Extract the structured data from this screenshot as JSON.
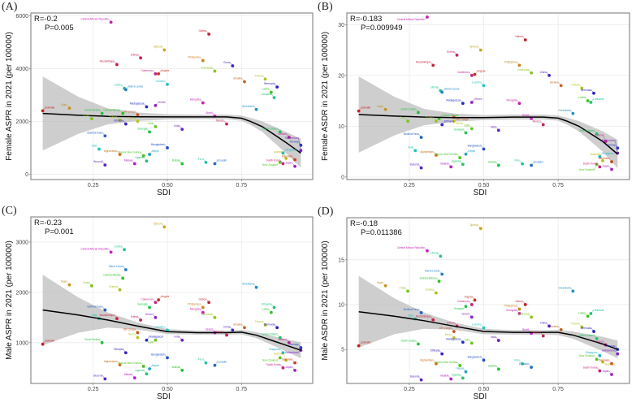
{
  "chart_data": [
    {
      "id": "A",
      "panel_label": "(A)",
      "type": "scatter",
      "metric": "f_aspr",
      "xlabel": "SDI",
      "ylabel": "Female ASPR in 2021 (per 100000)",
      "stat_r": "R=-0.2",
      "stat_p": "P=0.005",
      "xlim": [
        0.04,
        0.99
      ],
      "ylim": [
        -200,
        6100
      ],
      "xticks": [
        0.25,
        0.5,
        0.75
      ],
      "xtick_labels": [
        "0.25",
        "0.50",
        "0.75"
      ],
      "yticks": [
        0,
        2000,
        4000,
        6000
      ],
      "ytick_labels": [
        "0",
        "2000",
        "4000",
        "6000"
      ],
      "trend": {
        "x": [
          0.08,
          0.2,
          0.3,
          0.4,
          0.5,
          0.6,
          0.7,
          0.75,
          0.78,
          0.82,
          0.86,
          0.9,
          0.95
        ],
        "y": [
          2300,
          2230,
          2190,
          2175,
          2170,
          2170,
          2170,
          2120,
          2000,
          1800,
          1500,
          1200,
          800
        ],
        "ci": [
          1400,
          700,
          300,
          160,
          100,
          90,
          90,
          100,
          130,
          200,
          300,
          400,
          550
        ]
      }
    },
    {
      "id": "B",
      "panel_label": "(B)",
      "type": "scatter",
      "metric": "f_asdr",
      "xlabel": "SDI",
      "ylabel": "Female ASDR in 2021 (per 100000)",
      "stat_r": "R=-0.183",
      "stat_p": "P=0.009949",
      "xlim": [
        0.04,
        0.99
      ],
      "ylim": [
        -0.5,
        32.3
      ],
      "xticks": [
        0.25,
        0.5,
        0.75
      ],
      "xtick_labels": [
        "0.25",
        "0.50",
        "0.75"
      ],
      "yticks": [
        0,
        10,
        20,
        30
      ],
      "ytick_labels": [
        "0",
        "10",
        "20",
        "30"
      ],
      "trend": {
        "x": [
          0.08,
          0.2,
          0.3,
          0.4,
          0.5,
          0.6,
          0.7,
          0.75,
          0.78,
          0.82,
          0.86,
          0.9,
          0.95
        ],
        "y": [
          12.3,
          12.0,
          11.8,
          11.7,
          11.7,
          11.8,
          11.8,
          11.6,
          11.0,
          10.0,
          8.5,
          7.0,
          4.5
        ],
        "ci": [
          7.5,
          3.8,
          1.6,
          0.8,
          0.5,
          0.5,
          0.5,
          0.5,
          0.7,
          1.0,
          1.5,
          2.0,
          2.8
        ]
      }
    },
    {
      "id": "C",
      "panel_label": "(C)",
      "type": "scatter",
      "metric": "m_aspr",
      "xlabel": "SDI",
      "ylabel": "Male ASPR in 2021 (per 100000)",
      "stat_r": "R=-0.23",
      "stat_p": "P=0.001",
      "xlim": [
        0.04,
        0.99
      ],
      "ylim": [
        190,
        3500
      ],
      "xticks": [
        0.25,
        0.5,
        0.75
      ],
      "xtick_labels": [
        "0.25",
        "0.50",
        "0.75"
      ],
      "yticks": [
        1000,
        2000,
        3000
      ],
      "ytick_labels": [
        "1000",
        "2000",
        "3000"
      ],
      "trend": {
        "x": [
          0.08,
          0.2,
          0.3,
          0.4,
          0.5,
          0.6,
          0.7,
          0.75,
          0.8,
          0.85,
          0.9,
          0.95
        ],
        "y": [
          1650,
          1550,
          1450,
          1330,
          1220,
          1200,
          1200,
          1210,
          1150,
          1050,
          950,
          850
        ],
        "ci": [
          700,
          350,
          150,
          70,
          50,
          40,
          40,
          45,
          60,
          90,
          120,
          160
        ]
      }
    },
    {
      "id": "D",
      "panel_label": "(D)",
      "type": "scatter",
      "metric": "m_asdr",
      "xlabel": "SDI",
      "ylabel": "Male ASDR in 2021 (per 100000)",
      "stat_r": "R=-0.18",
      "stat_p": "P=0.011386",
      "xlim": [
        0.04,
        0.99
      ],
      "ylim": [
        1.2,
        19.7
      ],
      "xticks": [
        0.25,
        0.5,
        0.75
      ],
      "xtick_labels": [
        "0.25",
        "0.50",
        "0.75"
      ],
      "yticks": [
        5,
        10,
        15
      ],
      "ytick_labels": [
        "5",
        "10",
        "15"
      ],
      "trend": {
        "x": [
          0.08,
          0.2,
          0.3,
          0.4,
          0.5,
          0.6,
          0.7,
          0.75,
          0.8,
          0.85,
          0.9,
          0.95
        ],
        "y": [
          9.2,
          8.7,
          8.2,
          7.6,
          7.0,
          6.9,
          6.9,
          6.9,
          6.6,
          6.1,
          5.6,
          5.0
        ],
        "ci": [
          4.0,
          2.0,
          0.9,
          0.4,
          0.3,
          0.25,
          0.25,
          0.3,
          0.4,
          0.6,
          0.8,
          1.0
        ]
      }
    }
  ],
  "points_fields": [
    "country",
    "sdi",
    "f_aspr",
    "f_asdr",
    "m_aspr",
    "m_asdr"
  ],
  "points": [
    [
      "Somalia",
      0.08,
      2400,
      13,
      970,
      5.4
    ],
    [
      "Niger",
      0.17,
      2500,
      13.3,
      2150,
      12.1
    ],
    [
      "Chad",
      0.245,
      2100,
      11,
      2130,
      11.5
    ],
    [
      "South Sudan",
      0.28,
      2300,
      12.7,
      1000,
      5.6
    ],
    [
      "Mali",
      0.27,
      950,
      5.2,
      1480,
      8.4
    ],
    [
      "Burkina Faso",
      0.29,
      1450,
      7.8,
      1650,
      9.1
    ],
    [
      "Burundi",
      0.29,
      350,
      1.8,
      280,
      1.6
    ],
    [
      "Central African Republic",
      0.31,
      5750,
      31.5,
      2800,
      16
    ],
    [
      "Mozambique",
      0.33,
      4150,
      22,
      1480,
      8.3
    ],
    [
      "Afghanistan",
      0.34,
      750,
      4.3,
      560,
      3.4
    ],
    [
      "Guinea",
      0.34,
      2050,
      11,
      2050,
      11.3
    ],
    [
      "Guinea-Bissau",
      0.35,
      2300,
      11.5,
      2280,
      12.6
    ],
    [
      "Liberia",
      0.355,
      3250,
      17,
      2850,
      15.4
    ],
    [
      "Sierra Leone",
      0.36,
      3200,
      16.7,
      2450,
      13.4
    ],
    [
      "Ethiopia",
      0.36,
      1900,
      10.3,
      800,
      4.5
    ],
    [
      "Malawi",
      0.39,
      400,
      2,
      300,
      1.7
    ],
    [
      "Eritrea",
      0.41,
      4400,
      24,
      1450,
      7.6
    ],
    [
      "DR Congo",
      0.4,
      2250,
      11.8,
      1200,
      7
    ],
    [
      "Benin",
      0.4,
      2000,
      11,
      1100,
      6.3
    ],
    [
      "Papua New Guinea",
      0.42,
      700,
      3.8,
      530,
      3.2
    ],
    [
      "Uganda",
      0.43,
      500,
      2.5,
      380,
      1.8
    ],
    [
      "Nepal",
      0.44,
      750,
      4.5,
      480,
      2.5
    ],
    [
      "Madagascar",
      0.43,
      2550,
      14.5,
      1050,
      5.8
    ],
    [
      "Yemen",
      0.46,
      2600,
      14.7,
      1500,
      8.6
    ],
    [
      "Cameroon",
      0.46,
      3800,
      20,
      1800,
      10
    ],
    [
      "Angola",
      0.47,
      3800,
      20.2,
      1850,
      10.5
    ],
    [
      "Djibouti",
      0.49,
      4700,
      25,
      3300,
      18.5
    ],
    [
      "Haiti",
      0.46,
      1800,
      9.5,
      1050,
      5.7
    ],
    [
      "Senegal",
      0.44,
      1600,
      8.7,
      1700,
      9.8
    ],
    [
      "Lesotho",
      0.5,
      3400,
      18,
      1250,
      7.4
    ],
    [
      "Bangladesh",
      0.5,
      1000,
      5.5,
      700,
      3.8
    ],
    [
      "India",
      0.55,
      1700,
      9.2,
      1050,
      6
    ],
    [
      "Mongolia",
      0.62,
      2700,
      14.5,
      1600,
      9
    ],
    [
      "Gabon",
      0.64,
      5300,
      27,
      1800,
      10
    ],
    [
      "Philippines",
      0.62,
      4300,
      22,
      1700,
      9.5
    ],
    [
      "Indonesia",
      0.66,
      3900,
      20.5,
      1500,
      8.6
    ],
    [
      "Bolivia",
      0.55,
      400,
      2.3,
      450,
      2.8
    ],
    [
      "Peru",
      0.63,
      450,
      2.6,
      600,
      3.4
    ],
    [
      "Ecuador",
      0.66,
      400,
      2.3,
      550,
      3
    ],
    [
      "China",
      0.72,
      4100,
      20,
      1250,
      7.6
    ],
    [
      "Brazil",
      0.66,
      2200,
      11.5,
      1200,
      6.8
    ],
    [
      "Mexico",
      0.7,
      1900,
      10.3,
      1150,
      6.5
    ],
    [
      "Ukraine",
      0.76,
      3500,
      18,
      1300,
      7.2
    ],
    [
      "Poland",
      0.83,
      3600,
      17.5,
      1350,
      7.5
    ],
    [
      "Latvia",
      0.85,
      3100,
      15,
      1600,
      8.7
    ],
    [
      "Lithuania",
      0.86,
      2900,
      14.7,
      1700,
      9
    ],
    [
      "Greenland",
      0.8,
      2450,
      12.5,
      2100,
      11.5
    ],
    [
      "Bermuda",
      0.87,
      3300,
      16.5,
      1300,
      7
    ],
    [
      "Japan",
      0.93,
      300,
      1.5,
      450,
      2.2
    ],
    [
      "South Korea",
      0.89,
      400,
      2,
      500,
      2.6
    ],
    [
      "Denmark",
      0.93,
      550,
      3,
      600,
      3.4
    ],
    [
      "Australia",
      0.9,
      600,
      3.2,
      650,
      3.6
    ],
    [
      "New Zealand",
      0.88,
      450,
      2.5,
      700,
      3.9
    ],
    [
      "United States",
      0.88,
      1600,
      8.5,
      1100,
      6.2
    ],
    [
      "Singapore",
      0.89,
      800,
      4,
      800,
      4.3
    ],
    [
      "Norway",
      0.95,
      1100,
      5.7,
      900,
      5
    ],
    [
      "Switzerland",
      0.95,
      900,
      4.7,
      850,
      4.5
    ],
    [
      "Iceland",
      0.91,
      1400,
      7,
      1000,
      5.5
    ]
  ],
  "colors": {
    "trend": "#000000",
    "ribbon": "#bdbdbd",
    "grid": "#ebebeb",
    "border": "#8c8c8c"
  }
}
